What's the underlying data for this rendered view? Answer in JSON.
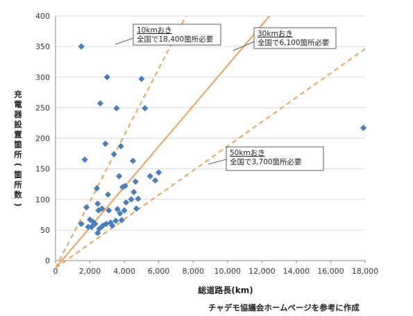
{
  "chart_data": {
    "type": "scatter",
    "title": "",
    "xlabel": "総道路長(km)",
    "ylabel": "充電器設置箇所(箇所数)",
    "xlim": [
      0,
      18000
    ],
    "ylim": [
      0,
      400
    ],
    "x_ticks": [
      "0",
      "2,000",
      "4,000",
      "6,000",
      "8,000",
      "10,000",
      "12,000",
      "14,000",
      "16,000",
      "18,000"
    ],
    "y_ticks": [
      "0",
      "50",
      "100",
      "150",
      "200",
      "250",
      "300",
      "350",
      "400"
    ],
    "grid": "horizontal",
    "marker_color": "#4a7ebb",
    "line_color": "#f79646",
    "points": [
      [
        1500,
        350
      ],
      [
        1700,
        165
      ],
      [
        1500,
        60
      ],
      [
        1800,
        87
      ],
      [
        1900,
        55
      ],
      [
        2000,
        67
      ],
      [
        2100,
        55
      ],
      [
        2200,
        63
      ],
      [
        2300,
        60
      ],
      [
        2400,
        118
      ],
      [
        2450,
        93
      ],
      [
        2450,
        45
      ],
      [
        2500,
        82
      ],
      [
        2550,
        52
      ],
      [
        2600,
        257
      ],
      [
        2700,
        85
      ],
      [
        2750,
        57
      ],
      [
        2900,
        191
      ],
      [
        2950,
        60
      ],
      [
        3000,
        300
      ],
      [
        3050,
        108
      ],
      [
        3100,
        82
      ],
      [
        3200,
        62
      ],
      [
        3300,
        57
      ],
      [
        3400,
        174
      ],
      [
        3500,
        65
      ],
      [
        3550,
        249
      ],
      [
        3600,
        84
      ],
      [
        3700,
        138
      ],
      [
        3750,
        77
      ],
      [
        3800,
        187
      ],
      [
        3850,
        66
      ],
      [
        3900,
        120
      ],
      [
        4000,
        82
      ],
      [
        4050,
        122
      ],
      [
        4100,
        95
      ],
      [
        4400,
        100
      ],
      [
        4500,
        163
      ],
      [
        4550,
        112
      ],
      [
        4650,
        129
      ],
      [
        4700,
        85
      ],
      [
        4800,
        101
      ],
      [
        5000,
        297
      ],
      [
        5200,
        249
      ],
      [
        5500,
        138
      ],
      [
        5800,
        131
      ],
      [
        6000,
        144
      ],
      [
        17900,
        217
      ]
    ],
    "reference_lines": [
      {
        "label_line1": "10kmおき",
        "label_line2": "全国で18,400箇所必要",
        "slope": 0.0543,
        "style": "dashed"
      },
      {
        "label_line1": "30kmおき",
        "label_line2": "全国で6,100箇所必要",
        "slope": 0.0331,
        "style": "solid"
      },
      {
        "label_line1": "50kmおき",
        "label_line2": "全国で3,700箇所必要",
        "slope": 0.0199,
        "style": "dashed"
      }
    ]
  },
  "source_note": "チャデモ協議会ホームページを参考に作成"
}
